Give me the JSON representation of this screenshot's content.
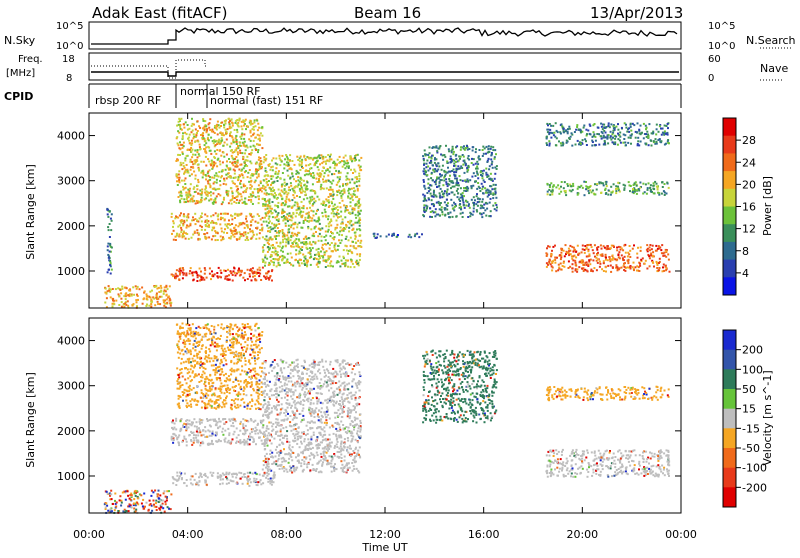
{
  "header": {
    "station": "Adak East (fitACF)",
    "beam": "Beam 16",
    "date": "13/Apr/2013"
  },
  "strips": {
    "nsky": {
      "label": "N.Sky",
      "tick_top": "10^5",
      "tick_bottom": "10^0"
    },
    "nsearch": {
      "label": "N.Search",
      "tick_top": "10^5",
      "tick_bottom": "10^0"
    },
    "freq": {
      "label_line1": "Freq.",
      "label_line2": "[MHz]",
      "tick_top": "18",
      "tick_bottom": "8"
    },
    "nave": {
      "label": "Nave",
      "tick_top": "60",
      "tick_bottom": "0"
    },
    "cpid": {
      "label": "CPID",
      "modes": [
        "rbsp 200 RF",
        "normal 150 RF",
        "normal (fast) 151 RF"
      ]
    }
  },
  "chart_data": [
    {
      "type": "heatmap",
      "title": "Power",
      "xlabel": "Time UT",
      "ylabel": "Slant Range [km]",
      "x_ticks": [
        "00:00",
        "04:00",
        "08:00",
        "12:00",
        "16:00",
        "20:00",
        "00:00"
      ],
      "x_range_hours": [
        0,
        24
      ],
      "y_ticks": [
        1000,
        2000,
        3000,
        4000
      ],
      "y_range": [
        180,
        4500
      ],
      "colorbar": {
        "label": "Power [dB]",
        "ticks": [
          "4",
          "8",
          "12",
          "16",
          "20",
          "24",
          "28"
        ],
        "range": [
          0,
          30
        ],
        "colors": [
          "#0a14e6",
          "#2a3fb0",
          "#2e6b8f",
          "#3a8f5a",
          "#6cc23a",
          "#c7d43a",
          "#f5a623",
          "#f06a1a",
          "#e83a1a",
          "#e00000"
        ]
      },
      "echo_regions": [
        {
          "t0": 0.6,
          "t1": 3.3,
          "r0": 200,
          "r1": 700,
          "level": 20
        },
        {
          "t0": 0.7,
          "t1": 0.9,
          "r0": 800,
          "r1": 2400,
          "level": 8
        },
        {
          "t0": 3.3,
          "t1": 7.5,
          "r0": 800,
          "r1": 1100,
          "level": 26
        },
        {
          "t0": 3.3,
          "t1": 7.0,
          "r0": 1700,
          "r1": 2300,
          "level": 20
        },
        {
          "t0": 3.5,
          "t1": 7.0,
          "r0": 2500,
          "r1": 4400,
          "level": 18
        },
        {
          "t0": 7.0,
          "t1": 11.0,
          "r0": 1100,
          "r1": 3600,
          "level": 16
        },
        {
          "t0": 11.5,
          "t1": 13.5,
          "r0": 1750,
          "r1": 1850,
          "level": 6
        },
        {
          "t0": 13.5,
          "t1": 16.5,
          "r0": 2200,
          "r1": 3800,
          "level": 8
        },
        {
          "t0": 18.5,
          "t1": 23.5,
          "r0": 1000,
          "r1": 1600,
          "level": 24
        },
        {
          "t0": 18.5,
          "t1": 23.5,
          "r0": 2700,
          "r1": 3000,
          "level": 12
        },
        {
          "t0": 18.5,
          "t1": 23.5,
          "r0": 3800,
          "r1": 4300,
          "level": 8
        }
      ]
    },
    {
      "type": "heatmap",
      "title": "Velocity",
      "xlabel": "Time UT",
      "ylabel": "Slant Range [km]",
      "x_ticks": [
        "00:00",
        "04:00",
        "08:00",
        "12:00",
        "16:00",
        "20:00",
        "00:00"
      ],
      "x_range_hours": [
        0,
        24
      ],
      "y_ticks": [
        1000,
        2000,
        3000,
        4000
      ],
      "y_range": [
        180,
        4500
      ],
      "colorbar": {
        "label": "Velocity [m s^-1]",
        "ticks": [
          "200",
          "100",
          "50",
          "15",
          "-15",
          "-50",
          "-100",
          "-200"
        ],
        "colors": [
          "#1a2ad0",
          "#3355aa",
          "#2e7b5a",
          "#66c43a",
          "#bebebe",
          "#f5a623",
          "#f06a1a",
          "#e83a1a",
          "#e00000"
        ]
      },
      "echo_regions": [
        {
          "t0": 0.6,
          "t1": 3.3,
          "r0": 200,
          "r1": 700,
          "vel": "mixed"
        },
        {
          "t0": 3.3,
          "t1": 7.5,
          "r0": 800,
          "r1": 1100,
          "vel": -10
        },
        {
          "t0": 3.3,
          "t1": 7.0,
          "r0": 1700,
          "r1": 2300,
          "vel": -10
        },
        {
          "t0": 3.5,
          "t1": 7.0,
          "r0": 2500,
          "r1": 4400,
          "vel": -50
        },
        {
          "t0": 7.0,
          "t1": 11.0,
          "r0": 1100,
          "r1": 3600,
          "vel": 0
        },
        {
          "t0": 13.5,
          "t1": 16.5,
          "r0": 2200,
          "r1": 3800,
          "vel": 40
        },
        {
          "t0": 18.5,
          "t1": 23.5,
          "r0": 1000,
          "r1": 1600,
          "vel": 0
        },
        {
          "t0": 18.5,
          "t1": 23.5,
          "r0": 2700,
          "r1": 3000,
          "vel": -40
        }
      ]
    }
  ]
}
